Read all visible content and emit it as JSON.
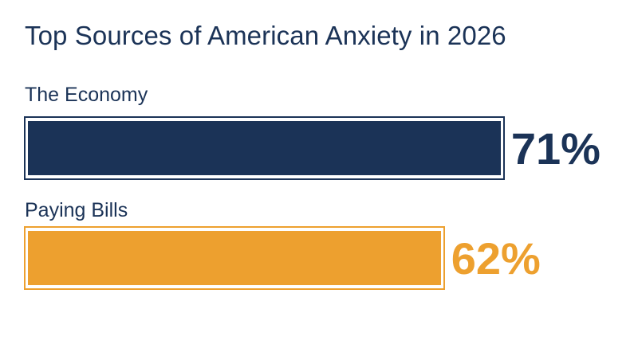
{
  "chart_data": {
    "type": "bar",
    "orientation": "horizontal",
    "title": "Top Sources of American Anxiety in 2026",
    "categories": [
      "The Economy",
      "Paying Bills"
    ],
    "values": [
      71,
      62
    ],
    "value_labels": [
      "71%",
      "62%"
    ],
    "colors": [
      "#1b3357",
      "#eda02f"
    ],
    "xlim": [
      0,
      100
    ],
    "grid": false,
    "legend": "none"
  }
}
